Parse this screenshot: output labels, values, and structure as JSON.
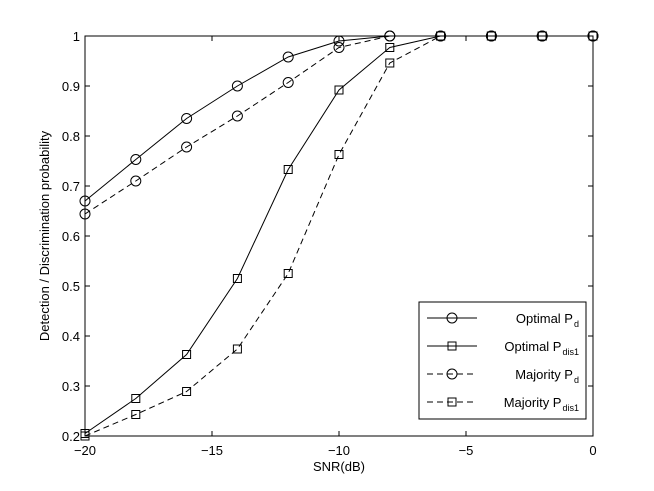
{
  "chart_data": {
    "type": "line",
    "title": "",
    "xlabel": "SNR(dB)",
    "ylabel": "Detection / Discrimination probability",
    "xlim": [
      -20,
      0
    ],
    "ylim": [
      0.2,
      1
    ],
    "x_ticks": [
      -20,
      -15,
      -10,
      -5,
      0
    ],
    "x_tick_labels": [
      "−20",
      "−15",
      "−10",
      "−5",
      "0"
    ],
    "y_ticks": [
      0.2,
      0.3,
      0.4,
      0.5,
      0.6,
      0.7,
      0.8,
      0.9,
      1
    ],
    "y_tick_labels": [
      "0.2",
      "0.3",
      "0.4",
      "0.5",
      "0.6",
      "0.7",
      "0.8",
      "0.9",
      "1"
    ],
    "grid": false,
    "legend_position": "bottom-right",
    "series": [
      {
        "name": "Optimal P",
        "subscript": "d",
        "line_style": "solid",
        "marker": "circle",
        "x": [
          -20,
          -18,
          -16,
          -14,
          -12,
          -10,
          -8,
          -6,
          -4,
          -2,
          0
        ],
        "y": [
          0.67,
          0.753,
          0.835,
          0.9,
          0.958,
          0.99,
          1,
          1,
          1,
          1,
          1
        ]
      },
      {
        "name": "Optimal P",
        "subscript": "dis1",
        "line_style": "solid",
        "marker": "square",
        "x": [
          -20,
          -18,
          -16,
          -14,
          -12,
          -10,
          -8,
          -6,
          -4,
          -2,
          0
        ],
        "y": [
          0.205,
          0.275,
          0.363,
          0.515,
          0.733,
          0.892,
          0.977,
          1,
          1,
          1,
          1
        ]
      },
      {
        "name": "Majority P",
        "subscript": "d",
        "line_style": "dashed",
        "marker": "circle",
        "x": [
          -20,
          -18,
          -16,
          -14,
          -12,
          -10,
          -8,
          -6,
          -4,
          -2,
          0
        ],
        "y": [
          0.644,
          0.71,
          0.778,
          0.84,
          0.907,
          0.977,
          1,
          1,
          1,
          1,
          1
        ]
      },
      {
        "name": "Majority P",
        "subscript": "dis1",
        "line_style": "dashed",
        "marker": "square",
        "x": [
          -20,
          -18,
          -16,
          -14,
          -12,
          -10,
          -8,
          -6,
          -4,
          -2,
          0
        ],
        "y": [
          0.2,
          0.243,
          0.289,
          0.374,
          0.525,
          0.763,
          0.946,
          1,
          1,
          1,
          1
        ]
      }
    ]
  }
}
